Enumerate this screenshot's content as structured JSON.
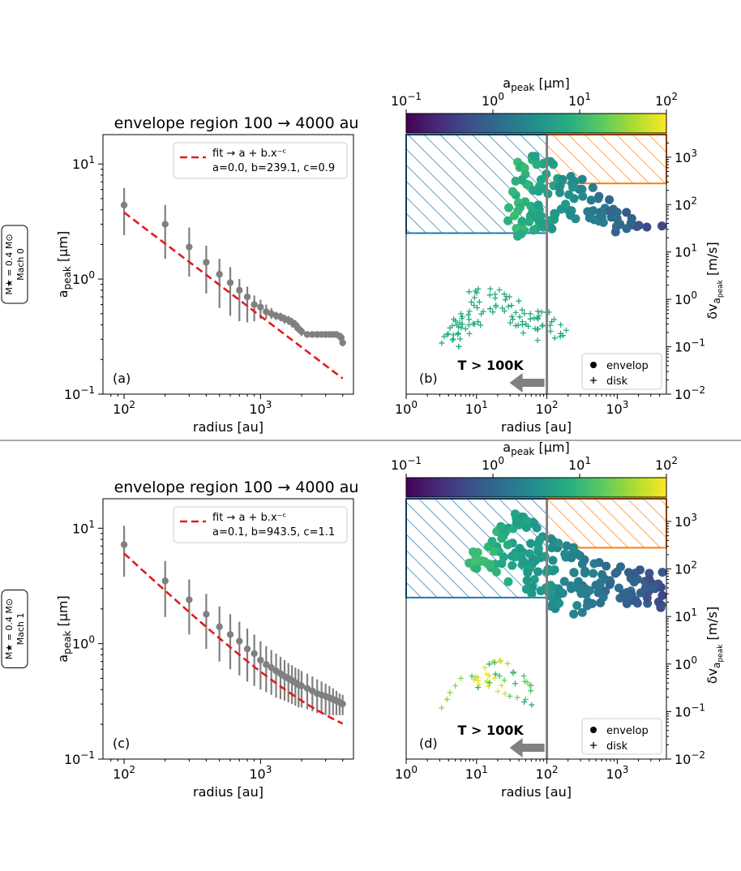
{
  "chart_data": [
    {
      "panel": "(a)",
      "type": "scatter",
      "title_prefix": "envelope region 100",
      "title_suffix": "4000 au",
      "row_label_line1": "M★ = 0.4 M⊙",
      "row_label_line2": "Mach 0",
      "xlabel": "radius [au]",
      "ylabel": "a",
      "ylabel_sub": "peak",
      "ylabel_unit": "[µm]",
      "xscale": "log",
      "yscale": "log",
      "xlim": [
        70,
        4800
      ],
      "ylim": [
        0.1,
        18
      ],
      "xticks": [
        {
          "v": 100,
          "label": "10",
          "exp": "2"
        },
        {
          "v": 1000,
          "label": "10",
          "exp": "3"
        }
      ],
      "yticks": [
        {
          "v": 0.1,
          "label": "10",
          "exp": "−1"
        },
        {
          "v": 1,
          "label": "10",
          "exp": "0"
        },
        {
          "v": 10,
          "label": "10",
          "exp": "1"
        }
      ],
      "legend": {
        "fit_label": "fit → a + b.x⁻ᶜ",
        "params": "a=0.0, b=239.1, c=0.9"
      },
      "fit": {
        "a": 0.0,
        "b": 239.1,
        "c": 0.9
      },
      "points": [
        {
          "x": 100,
          "y": 4.4,
          "lo": 2.4,
          "hi": 6.2
        },
        {
          "x": 200,
          "y": 3.0,
          "lo": 1.5,
          "hi": 4.4
        },
        {
          "x": 300,
          "y": 1.9,
          "lo": 1.05,
          "hi": 2.8
        },
        {
          "x": 400,
          "y": 1.4,
          "lo": 0.75,
          "hi": 1.95
        },
        {
          "x": 500,
          "y": 1.1,
          "lo": 0.56,
          "hi": 1.5
        },
        {
          "x": 600,
          "y": 0.93,
          "lo": 0.48,
          "hi": 1.27
        },
        {
          "x": 700,
          "y": 0.8,
          "lo": 0.43,
          "hi": 1.0
        },
        {
          "x": 800,
          "y": 0.7,
          "lo": 0.42,
          "hi": 0.86
        },
        {
          "x": 900,
          "y": 0.6,
          "lo": 0.43,
          "hi": 0.72
        },
        {
          "x": 1000,
          "y": 0.57,
          "lo": 0.45,
          "hi": 0.66
        },
        {
          "x": 1100,
          "y": 0.52,
          "lo": 0.45,
          "hi": 0.6
        },
        {
          "x": 1200,
          "y": 0.5,
          "lo": 0.45,
          "hi": 0.56
        },
        {
          "x": 1300,
          "y": 0.48,
          "lo": 0.44,
          "hi": 0.52
        },
        {
          "x": 1400,
          "y": 0.47,
          "lo": 0.43,
          "hi": 0.51
        },
        {
          "x": 1500,
          "y": 0.45,
          "lo": 0.41,
          "hi": 0.49
        },
        {
          "x": 1600,
          "y": 0.44,
          "lo": 0.4,
          "hi": 0.48
        },
        {
          "x": 1700,
          "y": 0.42,
          "lo": 0.38,
          "hi": 0.46
        },
        {
          "x": 1800,
          "y": 0.4,
          "lo": 0.36,
          "hi": 0.44
        },
        {
          "x": 1900,
          "y": 0.37,
          "lo": 0.34,
          "hi": 0.41
        },
        {
          "x": 2000,
          "y": 0.35,
          "lo": 0.32,
          "hi": 0.38
        },
        {
          "x": 2200,
          "y": 0.33,
          "lo": 0.31,
          "hi": 0.35
        },
        {
          "x": 2400,
          "y": 0.33,
          "lo": 0.31,
          "hi": 0.35
        },
        {
          "x": 2600,
          "y": 0.33,
          "lo": 0.31,
          "hi": 0.35
        },
        {
          "x": 2800,
          "y": 0.33,
          "lo": 0.31,
          "hi": 0.35
        },
        {
          "x": 3000,
          "y": 0.33,
          "lo": 0.31,
          "hi": 0.35
        },
        {
          "x": 3200,
          "y": 0.33,
          "lo": 0.31,
          "hi": 0.35
        },
        {
          "x": 3400,
          "y": 0.33,
          "lo": 0.31,
          "hi": 0.35
        },
        {
          "x": 3600,
          "y": 0.33,
          "lo": 0.31,
          "hi": 0.35
        },
        {
          "x": 3800,
          "y": 0.32,
          "lo": 0.3,
          "hi": 0.34
        },
        {
          "x": 3900,
          "y": 0.31,
          "lo": 0.29,
          "hi": 0.33
        },
        {
          "x": 4000,
          "y": 0.28,
          "lo": 0.26,
          "hi": 0.3
        }
      ]
    },
    {
      "panel": "(b)",
      "type": "scatter",
      "xlabel": "radius [au]",
      "ylabel": "δv",
      "ylabel_sub": "a",
      "ylabel_subsub": "peak",
      "ylabel_unit": "[m/s]",
      "xscale": "log",
      "yscale": "log",
      "xlim": [
        1,
        5000
      ],
      "ylim": [
        0.01,
        3000
      ],
      "xticks": [
        {
          "v": 1,
          "label": "10",
          "exp": "0"
        },
        {
          "v": 10,
          "label": "10",
          "exp": "1"
        },
        {
          "v": 100,
          "label": "10",
          "exp": "2"
        },
        {
          "v": 1000,
          "label": "10",
          "exp": "3"
        }
      ],
      "yticks": [
        {
          "v": 0.01,
          "label": "10",
          "exp": "−2"
        },
        {
          "v": 0.1,
          "label": "10",
          "exp": "−1"
        },
        {
          "v": 1,
          "label": "10",
          "exp": "0"
        },
        {
          "v": 10,
          "label": "10",
          "exp": "1"
        },
        {
          "v": 100,
          "label": "10",
          "exp": "2"
        },
        {
          "v": 1000,
          "label": "10",
          "exp": "3"
        }
      ],
      "colorbar": {
        "label": "a",
        "label_sub": "peak",
        "unit": "[µm]",
        "range": [
          0.1,
          100
        ],
        "ticks": [
          {
            "v": 0.1,
            "label": "10",
            "exp": "−1"
          },
          {
            "v": 1,
            "label": "10",
            "exp": "0"
          },
          {
            "v": 10,
            "label": "10",
            "exp": "1"
          },
          {
            "v": 100,
            "label": "10",
            "exp": "2"
          }
        ]
      },
      "blue_hatch": {
        "x": [
          1,
          100
        ],
        "y": [
          25,
          3000
        ]
      },
      "orange_hatch": {
        "x": [
          100,
          5000
        ],
        "y": [
          280,
          3000
        ]
      },
      "vline_x": 100,
      "temperature_label": "T > 100K",
      "legend": [
        "envelop",
        "disk"
      ],
      "envelope_path": [
        [
          40,
          1000
        ],
        [
          55,
          1200
        ],
        [
          100,
          900
        ],
        [
          200,
          500
        ],
        [
          400,
          300
        ],
        [
          800,
          120
        ],
        [
          1500,
          60
        ],
        [
          3000,
          40
        ],
        [
          4500,
          40
        ],
        [
          4500,
          25
        ],
        [
          3000,
          30
        ],
        [
          1500,
          25
        ],
        [
          800,
          25
        ],
        [
          400,
          50
        ],
        [
          300,
          80
        ],
        [
          250,
          40
        ],
        [
          150,
          30
        ],
        [
          80,
          20
        ],
        [
          40,
          18
        ],
        [
          30,
          25
        ],
        [
          25,
          60
        ],
        [
          30,
          200
        ]
      ],
      "envelope_color_range": [
        9.0,
        0.4
      ],
      "disk_path": [
        [
          3,
          0.15
        ],
        [
          5,
          0.5
        ],
        [
          8,
          1.5
        ],
        [
          14,
          2
        ],
        [
          25,
          1.5
        ],
        [
          60,
          0.8
        ],
        [
          150,
          0.35
        ],
        [
          220,
          0.2
        ],
        [
          200,
          0.12
        ],
        [
          100,
          0.13
        ],
        [
          50,
          0.14
        ],
        [
          30,
          0.25
        ],
        [
          20,
          0.5
        ],
        [
          12,
          0.3
        ],
        [
          8,
          0.15
        ],
        [
          5,
          0.08
        ]
      ],
      "disk_color_range": [
        8.0,
        6.0
      ],
      "disk_color_yellow": false
    },
    {
      "panel": "(c)",
      "type": "scatter",
      "title_prefix": "envelope region 100",
      "title_suffix": "4000 au",
      "row_label_line1": "M★ = 0.4 M⊙",
      "row_label_line2": "Mach 1",
      "xlabel": "radius [au]",
      "ylabel": "a",
      "ylabel_sub": "peak",
      "ylabel_unit": "[µm]",
      "xscale": "log",
      "yscale": "log",
      "xlim": [
        70,
        4800
      ],
      "ylim": [
        0.1,
        18
      ],
      "xticks": [
        {
          "v": 100,
          "label": "10",
          "exp": "2"
        },
        {
          "v": 1000,
          "label": "10",
          "exp": "3"
        }
      ],
      "yticks": [
        {
          "v": 0.1,
          "label": "10",
          "exp": "−1"
        },
        {
          "v": 1,
          "label": "10",
          "exp": "0"
        },
        {
          "v": 10,
          "label": "10",
          "exp": "1"
        }
      ],
      "legend": {
        "fit_label": "fit → a + b.x⁻ᶜ",
        "params": "a=0.1, b=943.5, c=1.1"
      },
      "fit": {
        "a": 0.1,
        "b": 943.5,
        "c": 1.1
      },
      "points": [
        {
          "x": 100,
          "y": 7.2,
          "lo": 3.8,
          "hi": 10.5
        },
        {
          "x": 200,
          "y": 3.5,
          "lo": 1.7,
          "hi": 5.2
        },
        {
          "x": 300,
          "y": 2.4,
          "lo": 1.2,
          "hi": 3.6
        },
        {
          "x": 400,
          "y": 1.8,
          "lo": 0.9,
          "hi": 2.7
        },
        {
          "x": 500,
          "y": 1.4,
          "lo": 0.7,
          "hi": 2.1
        },
        {
          "x": 600,
          "y": 1.2,
          "lo": 0.6,
          "hi": 1.8
        },
        {
          "x": 700,
          "y": 1.05,
          "lo": 0.53,
          "hi": 1.55
        },
        {
          "x": 800,
          "y": 0.9,
          "lo": 0.47,
          "hi": 1.35
        },
        {
          "x": 900,
          "y": 0.82,
          "lo": 0.43,
          "hi": 1.2
        },
        {
          "x": 1000,
          "y": 0.72,
          "lo": 0.4,
          "hi": 1.05
        },
        {
          "x": 1100,
          "y": 0.66,
          "lo": 0.38,
          "hi": 0.95
        },
        {
          "x": 1200,
          "y": 0.62,
          "lo": 0.36,
          "hi": 0.88
        },
        {
          "x": 1300,
          "y": 0.58,
          "lo": 0.34,
          "hi": 0.82
        },
        {
          "x": 1400,
          "y": 0.55,
          "lo": 0.33,
          "hi": 0.77
        },
        {
          "x": 1500,
          "y": 0.52,
          "lo": 0.32,
          "hi": 0.72
        },
        {
          "x": 1600,
          "y": 0.5,
          "lo": 0.31,
          "hi": 0.68
        },
        {
          "x": 1700,
          "y": 0.48,
          "lo": 0.3,
          "hi": 0.65
        },
        {
          "x": 1800,
          "y": 0.46,
          "lo": 0.29,
          "hi": 0.62
        },
        {
          "x": 1900,
          "y": 0.44,
          "lo": 0.28,
          "hi": 0.6
        },
        {
          "x": 2000,
          "y": 0.43,
          "lo": 0.28,
          "hi": 0.58
        },
        {
          "x": 2200,
          "y": 0.41,
          "lo": 0.27,
          "hi": 0.55
        },
        {
          "x": 2400,
          "y": 0.39,
          "lo": 0.26,
          "hi": 0.52
        },
        {
          "x": 2600,
          "y": 0.37,
          "lo": 0.25,
          "hi": 0.49
        },
        {
          "x": 2800,
          "y": 0.36,
          "lo": 0.25,
          "hi": 0.47
        },
        {
          "x": 3000,
          "y": 0.35,
          "lo": 0.24,
          "hi": 0.45
        },
        {
          "x": 3200,
          "y": 0.34,
          "lo": 0.24,
          "hi": 0.43
        },
        {
          "x": 3400,
          "y": 0.33,
          "lo": 0.24,
          "hi": 0.41
        },
        {
          "x": 3600,
          "y": 0.32,
          "lo": 0.24,
          "hi": 0.39
        },
        {
          "x": 3800,
          "y": 0.31,
          "lo": 0.24,
          "hi": 0.37
        },
        {
          "x": 4000,
          "y": 0.3,
          "lo": 0.24,
          "hi": 0.36
        }
      ]
    },
    {
      "panel": "(d)",
      "type": "scatter",
      "xlabel": "radius [au]",
      "ylabel": "δv",
      "ylabel_sub": "a",
      "ylabel_subsub": "peak",
      "ylabel_unit": "[m/s]",
      "xscale": "log",
      "yscale": "log",
      "xlim": [
        1,
        5000
      ],
      "ylim": [
        0.01,
        3000
      ],
      "xticks": [
        {
          "v": 1,
          "label": "10",
          "exp": "0"
        },
        {
          "v": 10,
          "label": "10",
          "exp": "1"
        },
        {
          "v": 100,
          "label": "10",
          "exp": "2"
        },
        {
          "v": 1000,
          "label": "10",
          "exp": "3"
        }
      ],
      "yticks": [
        {
          "v": 0.01,
          "label": "10",
          "exp": "−2"
        },
        {
          "v": 0.1,
          "label": "10",
          "exp": "−1"
        },
        {
          "v": 1,
          "label": "10",
          "exp": "0"
        },
        {
          "v": 10,
          "label": "10",
          "exp": "1"
        },
        {
          "v": 100,
          "label": "10",
          "exp": "2"
        },
        {
          "v": 1000,
          "label": "10",
          "exp": "3"
        }
      ],
      "colorbar": {
        "label": "a",
        "label_sub": "peak",
        "unit": "[µm]",
        "range": [
          0.1,
          100
        ],
        "ticks": [
          {
            "v": 0.1,
            "label": "10",
            "exp": "−1"
          },
          {
            "v": 1,
            "label": "10",
            "exp": "0"
          },
          {
            "v": 10,
            "label": "10",
            "exp": "1"
          },
          {
            "v": 100,
            "label": "10",
            "exp": "2"
          }
        ]
      },
      "blue_hatch": {
        "x": [
          1,
          100
        ],
        "y": [
          25,
          3000
        ]
      },
      "orange_hatch": {
        "x": [
          100,
          5000
        ],
        "y": [
          280,
          3000
        ]
      },
      "vline_x": 100,
      "temperature_label": "T > 100K",
      "legend": [
        "envelop",
        "disk"
      ],
      "envelope_path": [
        [
          6,
          100
        ],
        [
          15,
          500
        ],
        [
          30,
          1500
        ],
        [
          60,
          1400
        ],
        [
          100,
          600
        ],
        [
          300,
          250
        ],
        [
          800,
          120
        ],
        [
          2500,
          100
        ],
        [
          4500,
          100
        ],
        [
          4500,
          15
        ],
        [
          2500,
          15
        ],
        [
          800,
          20
        ],
        [
          400,
          15
        ],
        [
          250,
          8
        ],
        [
          150,
          12
        ],
        [
          80,
          20
        ],
        [
          40,
          40
        ],
        [
          20,
          60
        ],
        [
          10,
          80
        ]
      ],
      "envelope_color_range": [
        14.0,
        0.5
      ],
      "disk_path": [
        [
          8,
          0.4
        ],
        [
          12,
          1.5
        ],
        [
          20,
          1.3
        ],
        [
          35,
          0.8
        ],
        [
          60,
          0.6
        ],
        [
          70,
          0.25
        ],
        [
          60,
          0.12
        ],
        [
          40,
          0.15
        ],
        [
          25,
          0.2
        ],
        [
          15,
          0.2
        ],
        [
          8,
          0.3
        ]
      ],
      "disk_color_range": [
        30.0,
        6.0
      ],
      "disk_color_yellow": true
    }
  ]
}
